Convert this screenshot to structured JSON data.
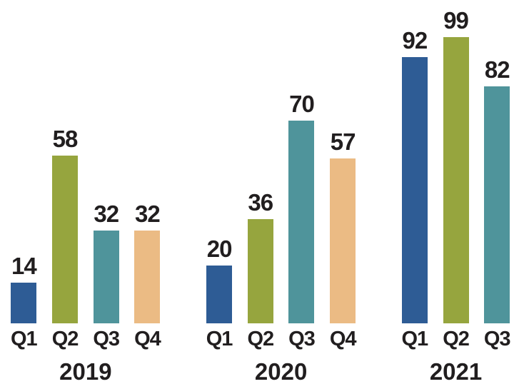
{
  "chart_data": {
    "type": "bar",
    "title": "",
    "xlabel": "",
    "ylabel": "",
    "ylim": [
      0,
      99
    ],
    "axes_hidden": true,
    "grid": false,
    "legend": false,
    "data_labels": true,
    "groups": [
      {
        "label": "2019",
        "categories": [
          "Q1",
          "Q2",
          "Q3",
          "Q4"
        ],
        "values": [
          14,
          58,
          32,
          32
        ]
      },
      {
        "label": "2020",
        "categories": [
          "Q1",
          "Q2",
          "Q3",
          "Q4"
        ],
        "values": [
          20,
          36,
          70,
          57
        ]
      },
      {
        "label": "2021",
        "categories": [
          "Q1",
          "Q2",
          "Q3"
        ],
        "values": [
          92,
          99,
          82
        ]
      }
    ],
    "quarter_colors": {
      "Q1": "#2e5c95",
      "Q2": "#96a53e",
      "Q3": "#4f949b",
      "Q4": "#ebbb84"
    },
    "label_color": "#211e1f",
    "background_color": "#ffffff"
  }
}
